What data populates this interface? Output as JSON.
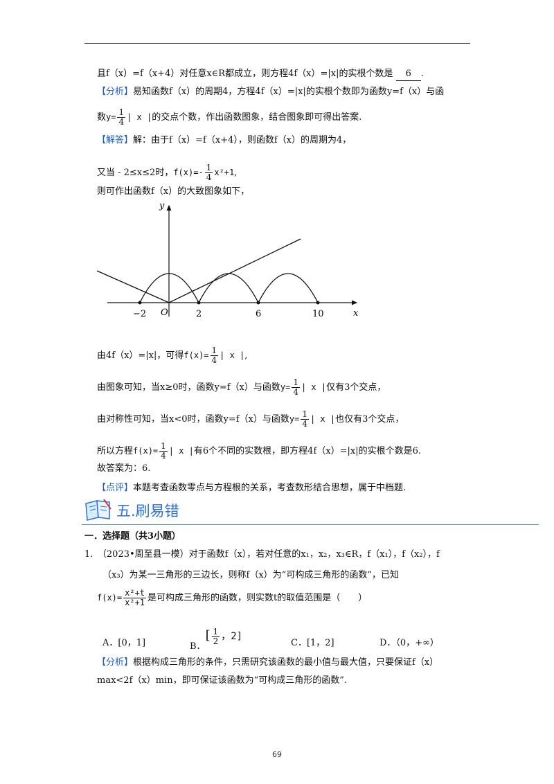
{
  "l1": {
    "a": "且f（x）=f（x+4）对任意x∈R都成立，则方程4f（x）=|x|的实根个数是",
    "ans": "6",
    "end": "."
  },
  "l2": {
    "tag": "【分析】",
    "text": "易知函数f（x）的周期4，方程4f（x）=|x|的实根个数即为函数y=f（x）与函"
  },
  "l3": {
    "pre": "数",
    "eq": "y=",
    "n": "1",
    "d": "4",
    "abs": "| x |",
    "text": "的交点个数，作出函数图象，结合图象即可得出答案."
  },
  "l4": {
    "tag": "【解答】",
    "text": "解：由于f（x）=f（x+4），则函数f（x）的周期为4，"
  },
  "l5": {
    "text": "又当 - 2≤x≤2时，",
    "eq": "f(x)=-",
    "n": "1",
    "d": "4",
    "tail": "x²+1",
    "end": ","
  },
  "l6": {
    "text": "则可作出函数f（x）的大致图象如下，"
  },
  "graph": {
    "y_label": "y",
    "x_label": "x",
    "origin": "O",
    "ticks": [
      "−2",
      "2",
      "6",
      "10"
    ]
  },
  "l7": {
    "text": "由4f（x）=|x|，可得",
    "eq": "f(x)=",
    "n": "1",
    "d": "4",
    "abs": "| x |",
    "end": ","
  },
  "l8": {
    "text": "由图象可知，当x≥0时，函数y=f（x）与函数",
    "eq": "y=",
    "n": "1",
    "d": "4",
    "abs": "| x |",
    "tail": "仅有3个交点，"
  },
  "l9": {
    "text": "由对称性可知，当x<0时，函数y=f（x）与函数",
    "eq": "y=",
    "n": "1",
    "d": "4",
    "abs": "| x |",
    "tail": "也仅有3个交点，"
  },
  "l10": {
    "text": "所以方程",
    "eq": "f(x)=",
    "n": "1",
    "d": "4",
    "abs": "| x |",
    "tail": "有6个不同的实数根，即方程4f（x）=|x|的实根个数是6."
  },
  "l11": {
    "text": "故答案为：6."
  },
  "l12": {
    "tag": "【点评】",
    "text": "本题考查函数零点与方程根的关系，考查数形结合思想，属于中档题."
  },
  "section": {
    "title": "五.刷易错"
  },
  "sub": {
    "title": "一．选择题（共3小题）"
  },
  "q1": {
    "l1": "1.　（2023•周至县一模）对于函数f（x），若对任意的x₁，x₂，x₃∈R，f（x₁），f（x₂），f",
    "l2": "（x₃）为某一三角形的三边长，则称f（x）为“可构成三角形的函数”，已知",
    "eq": "f(x)=",
    "n": "x²+t",
    "d": "x²+1",
    "l3": "是可构成三角形的函数，则实数t的取值范围是（　　）",
    "options": {
      "a": "A．[0，1]",
      "b_pre": "B．",
      "b_n": "1",
      "b_d": "2",
      "b_post": "，2]",
      "c": "C．[1，2]",
      "d": "D．（0，+∞）"
    },
    "tag": "【分析】",
    "a1": "根据构成三角形的条件，只需研究该函数的最小值与最大值，只要保证f（x）",
    "a2": "max<2f（x）min，即可保证该函数为“可构成三角形的函数”."
  },
  "page": {
    "number": "69"
  },
  "colors": {
    "accent": "#1f5fbf",
    "rule": "#4a8fe0"
  }
}
